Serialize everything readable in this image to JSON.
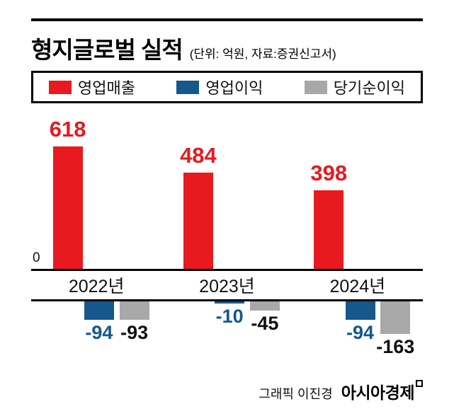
{
  "header": {
    "title": "형지글로벌 실적",
    "subtitle": "(단위: 억원, 자료:증권신고서)"
  },
  "legend": [
    {
      "label": "영업매출",
      "color": "#e8191f"
    },
    {
      "label": "영업이익",
      "color": "#14588c"
    },
    {
      "label": "당기순이익",
      "color": "#a8a8a8"
    }
  ],
  "chart_data": {
    "type": "bar",
    "title": "형지글로벌 실적",
    "unit": "억원",
    "source": "증권신고서",
    "categories": [
      "2022년",
      "2023년",
      "2024년"
    ],
    "series": [
      {
        "name": "영업매출",
        "color": "#e8191f",
        "values": [
          618,
          484,
          398
        ]
      },
      {
        "name": "영업이익",
        "color": "#14588c",
        "values": [
          -94,
          -10,
          -94
        ]
      },
      {
        "name": "당기순이익",
        "color": "#a8a8a8",
        "values": [
          -93,
          -45,
          -163
        ]
      }
    ],
    "zero_label": "0",
    "baseline": 0,
    "legend_position": "top",
    "grid": false
  },
  "footer": {
    "credit": "그래픽 이진경",
    "brand": "아시아경제"
  }
}
